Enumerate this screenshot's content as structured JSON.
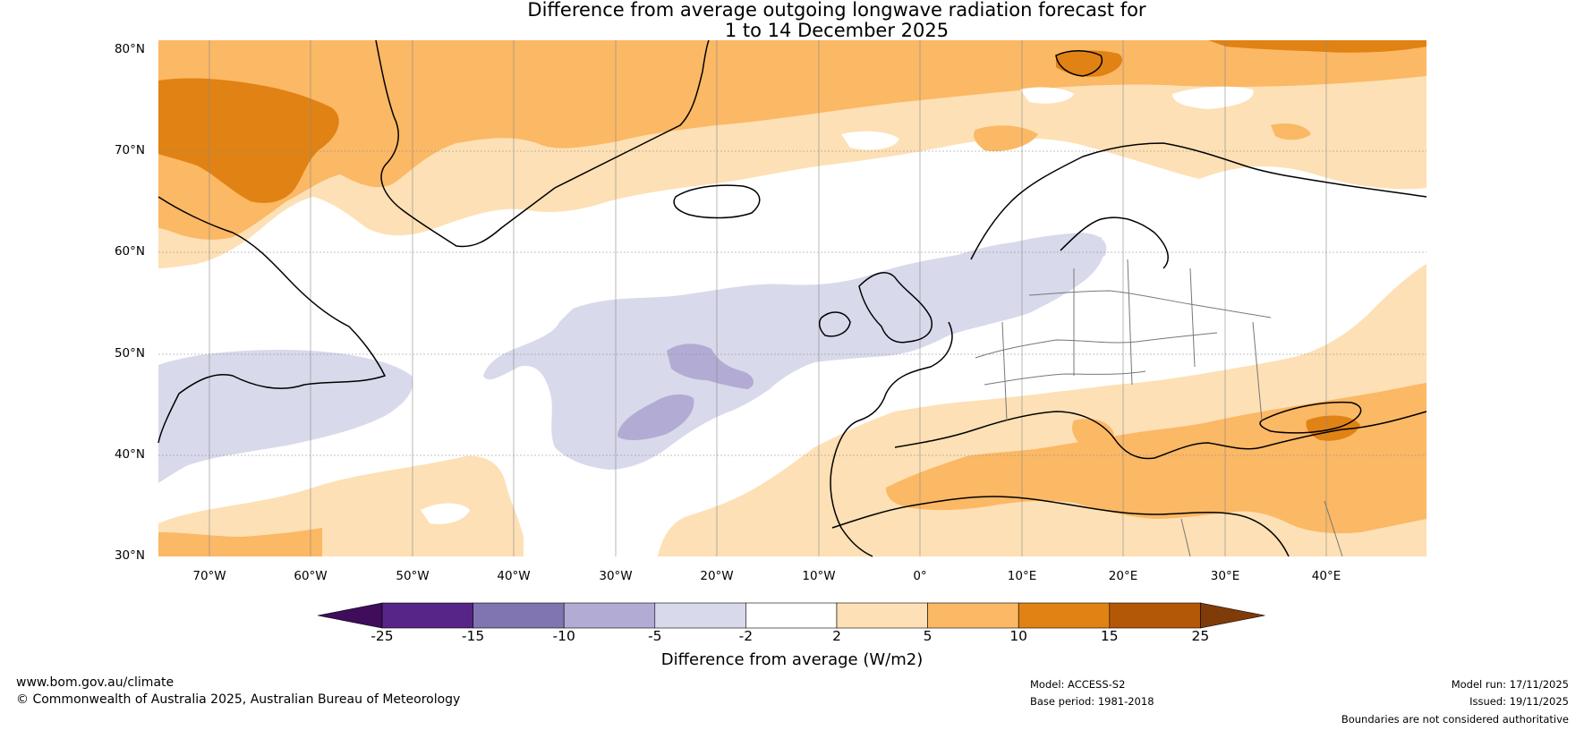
{
  "title": {
    "line1": "Difference from average outgoing longwave radiation forecast for",
    "line2": "1 to 14 December 2025"
  },
  "axes": {
    "lat_labels": [
      "80°N",
      "70°N",
      "60°N",
      "50°N",
      "40°N",
      "30°N"
    ],
    "lon_labels": [
      "70°W",
      "60°W",
      "50°W",
      "40°W",
      "30°W",
      "20°W",
      "10°W",
      "0°",
      "10°E",
      "20°E",
      "30°E",
      "40°E"
    ],
    "lat_range": [
      30,
      80
    ],
    "lon_range": [
      -75,
      50
    ]
  },
  "colorbar": {
    "label": "Difference from average (W/m2)",
    "ticks": [
      "-25",
      "-15",
      "-10",
      "-5",
      "-2",
      "2",
      "5",
      "10",
      "15",
      "25"
    ],
    "colors": [
      "#3f0d5c",
      "#562586",
      "#8074b1",
      "#b2abd3",
      "#d8d9eb",
      "#ffffff",
      "#fde0b5",
      "#fbb865",
      "#e08214",
      "#b35806",
      "#7f3b08"
    ]
  },
  "footer": {
    "website": "www.bom.gov.au/climate",
    "copyright": "© Commonwealth of Australia 2025, Australian Bureau of Meteorology",
    "model": "Model: ACCESS-S2",
    "base_period": "Base period: 1981-2018",
    "model_run": "Model run: 17/11/2025",
    "issued": "Issued: 19/11/2025",
    "disclaimer": "Boundaries are not considered authoritative"
  }
}
